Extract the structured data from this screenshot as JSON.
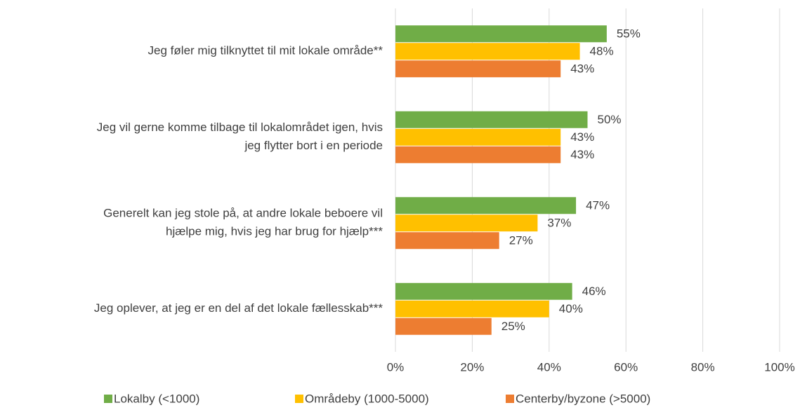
{
  "chart_data": {
    "type": "hbar",
    "categories": [
      [
        "Jeg føler mig tilknyttet til mit lokale område**"
      ],
      [
        "Jeg vil gerne komme tilbage til lokalområdet igen, hvis",
        "jeg flytter bort i en periode"
      ],
      [
        "Generelt kan jeg stole på, at andre lokale beboere vil",
        "hjælpe mig, hvis jeg har brug for hjælp***"
      ],
      [
        "Jeg oplever, at jeg er en del af det lokale fællesskab***"
      ]
    ],
    "series": [
      {
        "name": "Lokalby (<1000)",
        "color": "#70ad47",
        "values": [
          55,
          50,
          47,
          46
        ],
        "value_labels": [
          "55%",
          "50%",
          "47%",
          "46%"
        ]
      },
      {
        "name": "Områdeby (1000-5000)",
        "color": "#ffc000",
        "values": [
          48,
          43,
          37,
          40
        ],
        "value_labels": [
          "48%",
          "43%",
          "37%",
          "40%"
        ]
      },
      {
        "name": "Centerby/byzone (>5000)",
        "color": "#ed7d31",
        "values": [
          43,
          43,
          27,
          25
        ],
        "value_labels": [
          "43%",
          "43%",
          "27%",
          "25%"
        ]
      }
    ],
    "xlim": [
      0,
      100
    ],
    "xticks": [
      {
        "value": 0,
        "label": "0%"
      },
      {
        "value": 20,
        "label": "20%"
      },
      {
        "value": 40,
        "label": "40%"
      },
      {
        "value": 60,
        "label": "60%"
      },
      {
        "value": 80,
        "label": "80%"
      },
      {
        "value": 100,
        "label": "100%"
      }
    ],
    "grid": true,
    "legend": "bottom"
  }
}
